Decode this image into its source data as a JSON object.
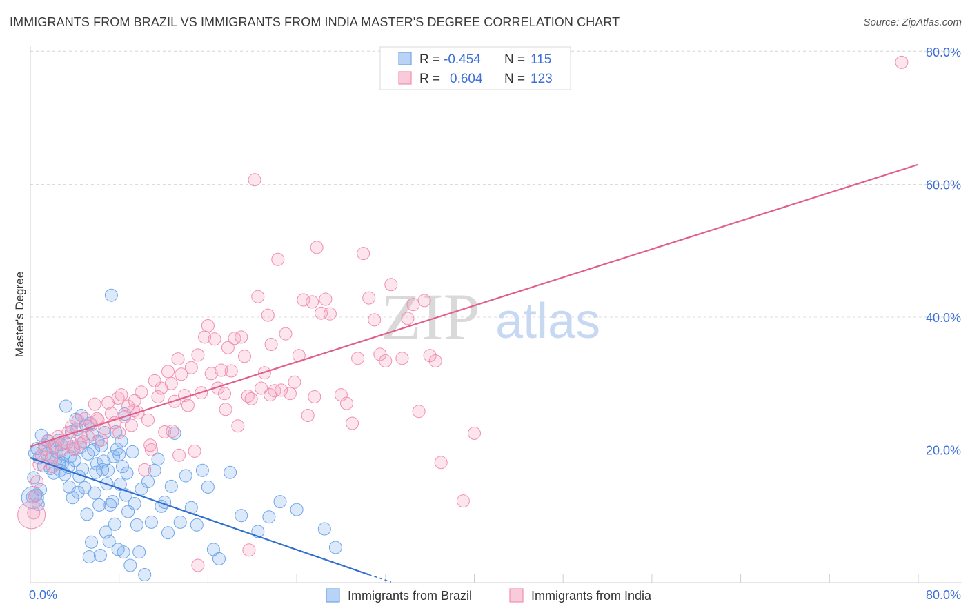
{
  "title": "IMMIGRANTS FROM BRAZIL VS IMMIGRANTS FROM INDIA MASTER'S DEGREE CORRELATION CHART",
  "source": "Source: ZipAtlas.com",
  "watermark": {
    "zip": "ZIP",
    "atlas": "atlas"
  },
  "legend": {
    "rows": [
      {
        "r_label": "R =",
        "r_value": "-0.454",
        "n_label": "N =",
        "n_value": "115",
        "color": "#7fb0ec"
      },
      {
        "r_label": "R =",
        "r_value": "0.604",
        "n_label": "N =",
        "n_value": "123",
        "color": "#f4a3bd"
      }
    ]
  },
  "bottom_legend": [
    {
      "label": "Immigrants from Brazil",
      "color": "#7fb0ec"
    },
    {
      "label": "Immigrants from India",
      "color": "#f4a3bd"
    }
  ],
  "chart_data": {
    "type": "scatter",
    "title": "IMMIGRANTS FROM BRAZIL VS IMMIGRANTS FROM INDIA MASTER'S DEGREE CORRELATION CHART",
    "xlabel": "",
    "ylabel": "Master's Degree",
    "xlim": [
      0,
      80
    ],
    "ylim": [
      0,
      80
    ],
    "x_tick_labels": [
      "0.0%",
      "80.0%"
    ],
    "y_tick_labels": [
      "20.0%",
      "40.0%",
      "60.0%",
      "80.0%"
    ],
    "y_ticks": [
      20,
      40,
      60,
      80
    ],
    "grid": true,
    "legend_position": "top-center",
    "series": [
      {
        "name": "Immigrants from Brazil",
        "color": "#6fa6ea",
        "trend": {
          "x": [
            0,
            30.5
          ],
          "y": [
            18.8,
            1.2
          ]
        },
        "points": [
          [
            0.4,
            19.5
          ],
          [
            0.6,
            20.2
          ],
          [
            0.8,
            18.8
          ],
          [
            1.0,
            22.2
          ],
          [
            1.2,
            17.6
          ],
          [
            1.3,
            20.7
          ],
          [
            1.5,
            19.4
          ],
          [
            1.6,
            21.3
          ],
          [
            1.8,
            17.2
          ],
          [
            1.9,
            18.9
          ],
          [
            2.0,
            20.4
          ],
          [
            2.1,
            16.5
          ],
          [
            2.3,
            18.5
          ],
          [
            2.4,
            19.7
          ],
          [
            2.5,
            21.4
          ],
          [
            2.6,
            17.9
          ],
          [
            2.7,
            16.9
          ],
          [
            2.8,
            20.8
          ],
          [
            2.9,
            18.0
          ],
          [
            3.0,
            19.3
          ],
          [
            3.1,
            16.3
          ],
          [
            3.2,
            26.6
          ],
          [
            3.3,
            21.0
          ],
          [
            3.4,
            17.4
          ],
          [
            3.5,
            14.4
          ],
          [
            3.6,
            19.0
          ],
          [
            3.7,
            22.7
          ],
          [
            3.8,
            12.8
          ],
          [
            3.9,
            20.2
          ],
          [
            4.0,
            18.4
          ],
          [
            4.1,
            24.6
          ],
          [
            4.2,
            23.1
          ],
          [
            4.3,
            13.6
          ],
          [
            4.4,
            16.0
          ],
          [
            4.5,
            20.4
          ],
          [
            4.6,
            25.2
          ],
          [
            4.7,
            17.1
          ],
          [
            4.8,
            21.2
          ],
          [
            4.9,
            14.3
          ],
          [
            5.0,
            23.7
          ],
          [
            5.1,
            10.3
          ],
          [
            5.2,
            19.4
          ],
          [
            5.3,
            3.9
          ],
          [
            5.4,
            24.0
          ],
          [
            5.5,
            6.1
          ],
          [
            5.6,
            22.3
          ],
          [
            5.7,
            20.0
          ],
          [
            5.8,
            13.5
          ],
          [
            5.9,
            16.6
          ],
          [
            6.0,
            17.9
          ],
          [
            6.1,
            21.3
          ],
          [
            6.2,
            11.7
          ],
          [
            6.3,
            4.1
          ],
          [
            6.4,
            20.6
          ],
          [
            6.5,
            17.0
          ],
          [
            6.6,
            18.3
          ],
          [
            6.7,
            22.6
          ],
          [
            6.8,
            7.6
          ],
          [
            6.9,
            14.9
          ],
          [
            7.0,
            16.9
          ],
          [
            7.1,
            6.2
          ],
          [
            7.2,
            11.7
          ],
          [
            7.3,
            43.3
          ],
          [
            7.4,
            12.2
          ],
          [
            7.5,
            19.0
          ],
          [
            7.6,
            8.8
          ],
          [
            7.7,
            22.7
          ],
          [
            7.8,
            20.1
          ],
          [
            7.9,
            5.0
          ],
          [
            8.0,
            19.3
          ],
          [
            8.1,
            14.8
          ],
          [
            8.2,
            21.3
          ],
          [
            8.3,
            17.5
          ],
          [
            8.4,
            4.6
          ],
          [
            8.5,
            25.4
          ],
          [
            8.6,
            13.2
          ],
          [
            8.7,
            16.5
          ],
          [
            8.8,
            10.7
          ],
          [
            9.0,
            2.6
          ],
          [
            9.2,
            19.7
          ],
          [
            9.4,
            11.9
          ],
          [
            9.6,
            8.7
          ],
          [
            9.8,
            4.6
          ],
          [
            10.0,
            14.1
          ],
          [
            10.3,
            1.2
          ],
          [
            10.6,
            15.2
          ],
          [
            10.9,
            9.1
          ],
          [
            11.2,
            16.9
          ],
          [
            11.5,
            18.6
          ],
          [
            11.8,
            11.5
          ],
          [
            12.1,
            12.1
          ],
          [
            12.4,
            7.5
          ],
          [
            12.7,
            14.5
          ],
          [
            13.0,
            22.5
          ],
          [
            13.5,
            9.1
          ],
          [
            14.0,
            16.1
          ],
          [
            14.5,
            11.3
          ],
          [
            15.0,
            8.7
          ],
          [
            15.5,
            16.9
          ],
          [
            16.0,
            14.4
          ],
          [
            16.5,
            5.0
          ],
          [
            17.0,
            3.6
          ],
          [
            18.0,
            16.6
          ],
          [
            19.0,
            10.1
          ],
          [
            20.5,
            7.7
          ],
          [
            21.5,
            9.9
          ],
          [
            22.5,
            12.2
          ],
          [
            24.0,
            11.0
          ],
          [
            26.5,
            8.1
          ],
          [
            27.5,
            5.3
          ],
          [
            0.2,
            12.9
          ],
          [
            0.3,
            15.8
          ],
          [
            0.5,
            13.2
          ],
          [
            0.7,
            11.8
          ],
          [
            0.9,
            14.0
          ]
        ]
      },
      {
        "name": "Immigrants from India",
        "color": "#f28eb0",
        "trend": {
          "x": [
            0,
            80
          ],
          "y": [
            20.5,
            63.0
          ]
        },
        "points": [
          [
            0.3,
            10.5
          ],
          [
            0.4,
            13.0
          ],
          [
            0.6,
            15.2
          ],
          [
            0.8,
            17.8
          ],
          [
            1.0,
            19.2
          ],
          [
            1.3,
            20.1
          ],
          [
            1.6,
            21.4
          ],
          [
            1.9,
            18.6
          ],
          [
            2.2,
            20.6
          ],
          [
            2.5,
            22.0
          ],
          [
            2.8,
            19.9
          ],
          [
            3.1,
            21.1
          ],
          [
            3.4,
            22.6
          ],
          [
            3.7,
            23.5
          ],
          [
            4.0,
            20.1
          ],
          [
            4.3,
            24.4
          ],
          [
            4.6,
            21.9
          ],
          [
            4.9,
            24.7
          ],
          [
            5.2,
            22.0
          ],
          [
            5.5,
            23.8
          ],
          [
            5.8,
            26.9
          ],
          [
            6.1,
            24.5
          ],
          [
            6.4,
            21.5
          ],
          [
            6.7,
            23.2
          ],
          [
            7.0,
            27.1
          ],
          [
            7.3,
            25.5
          ],
          [
            7.6,
            24.1
          ],
          [
            7.9,
            27.8
          ],
          [
            8.2,
            28.3
          ],
          [
            8.5,
            25.0
          ],
          [
            8.8,
            26.6
          ],
          [
            9.1,
            23.7
          ],
          [
            9.4,
            27.4
          ],
          [
            9.7,
            25.6
          ],
          [
            10.0,
            28.7
          ],
          [
            10.3,
            17.0
          ],
          [
            10.6,
            24.5
          ],
          [
            10.9,
            20.0
          ],
          [
            11.2,
            30.4
          ],
          [
            11.5,
            28.0
          ],
          [
            11.8,
            29.3
          ],
          [
            12.1,
            22.7
          ],
          [
            12.4,
            31.8
          ],
          [
            12.7,
            30.0
          ],
          [
            13.0,
            27.3
          ],
          [
            13.3,
            33.7
          ],
          [
            13.6,
            31.4
          ],
          [
            13.9,
            28.2
          ],
          [
            14.2,
            26.7
          ],
          [
            14.5,
            32.4
          ],
          [
            14.8,
            19.8
          ],
          [
            15.1,
            34.3
          ],
          [
            15.4,
            28.6
          ],
          [
            15.7,
            37.0
          ],
          [
            16.0,
            38.7
          ],
          [
            16.3,
            31.5
          ],
          [
            16.6,
            36.7
          ],
          [
            16.9,
            29.3
          ],
          [
            17.2,
            32.0
          ],
          [
            17.5,
            28.5
          ],
          [
            17.8,
            35.4
          ],
          [
            18.1,
            31.9
          ],
          [
            18.4,
            36.8
          ],
          [
            18.7,
            23.6
          ],
          [
            19.0,
            37.0
          ],
          [
            19.3,
            34.1
          ],
          [
            19.6,
            28.1
          ],
          [
            19.9,
            27.7
          ],
          [
            20.2,
            60.7
          ],
          [
            20.5,
            43.1
          ],
          [
            20.8,
            29.3
          ],
          [
            21.1,
            31.6
          ],
          [
            21.4,
            40.3
          ],
          [
            21.7,
            35.9
          ],
          [
            22.0,
            28.9
          ],
          [
            22.3,
            48.7
          ],
          [
            22.6,
            29.0
          ],
          [
            23.0,
            37.5
          ],
          [
            23.4,
            28.5
          ],
          [
            23.8,
            30.2
          ],
          [
            24.2,
            34.2
          ],
          [
            24.6,
            42.6
          ],
          [
            25.0,
            25.2
          ],
          [
            25.4,
            42.3
          ],
          [
            25.8,
            50.5
          ],
          [
            26.2,
            40.6
          ],
          [
            26.6,
            42.7
          ],
          [
            27.0,
            40.5
          ],
          [
            28.0,
            28.3
          ],
          [
            28.5,
            27.0
          ],
          [
            29.0,
            24.0
          ],
          [
            29.5,
            33.8
          ],
          [
            30.0,
            49.6
          ],
          [
            30.5,
            42.9
          ],
          [
            31.0,
            39.6
          ],
          [
            31.5,
            34.4
          ],
          [
            32.0,
            33.4
          ],
          [
            32.5,
            44.9
          ],
          [
            33.5,
            33.8
          ],
          [
            34.0,
            39.8
          ],
          [
            34.5,
            41.9
          ],
          [
            35.0,
            25.8
          ],
          [
            35.5,
            42.5
          ],
          [
            36.0,
            34.2
          ],
          [
            36.5,
            33.4
          ],
          [
            37.0,
            18.1
          ],
          [
            39.0,
            12.3
          ],
          [
            40.0,
            22.5
          ],
          [
            78.5,
            78.4
          ],
          [
            13.4,
            19.2
          ],
          [
            15.1,
            2.6
          ],
          [
            19.7,
            4.9
          ],
          [
            9.3,
            25.9
          ],
          [
            6.0,
            24.7
          ],
          [
            4.5,
            20.9
          ],
          [
            3.8,
            20.5
          ],
          [
            2.0,
            17.5
          ],
          [
            8.0,
            22.6
          ],
          [
            10.8,
            20.7
          ],
          [
            12.8,
            22.8
          ],
          [
            17.6,
            26.1
          ],
          [
            21.6,
            28.3
          ],
          [
            25.6,
            28.0
          ]
        ]
      }
    ]
  }
}
